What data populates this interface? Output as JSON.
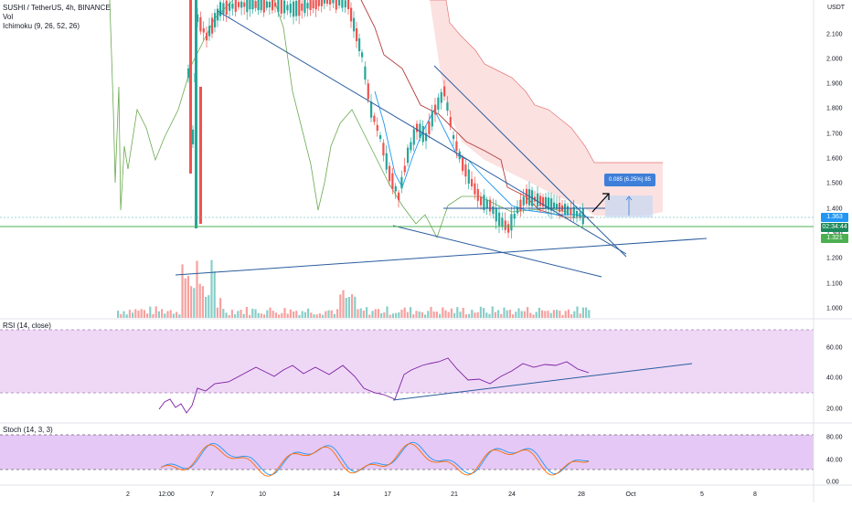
{
  "chart": {
    "symbol_line": "SUSHI / TetherUS, 4h, BINANCE",
    "indicators": [
      "Vol",
      "Ichimoku (9, 26, 52, 26)"
    ],
    "currency": "USDT",
    "price_ticks": [
      "2.100",
      "2.000",
      "1.900",
      "1.800",
      "1.700",
      "1.600",
      "1.500",
      "1.400",
      "1.300",
      "1.200",
      "1.100",
      "1.000"
    ],
    "current_price": "1.363",
    "countdown": "02:34:44",
    "level_price": "1.321",
    "measure_label": "0.085 (6.25%) 85",
    "time_ticks": [
      "2",
      "12:00",
      "7",
      "10",
      "14",
      "17",
      "21",
      "24",
      "28",
      "Oct",
      "5",
      "8"
    ]
  },
  "rsi": {
    "title": "RSI (14, close)",
    "ticks": [
      "60.00",
      "40.00",
      "20.00"
    ]
  },
  "stoch": {
    "title": "Stoch (14, 3, 3)",
    "ticks": [
      "80.00",
      "40.00",
      "0.00"
    ]
  },
  "colors": {
    "up": "#26a69a",
    "down": "#ef5350",
    "cloud_fill": "#fbdcdc",
    "trendline": "#2a5c9e",
    "support": "#4caf50",
    "current_price_bg": "#2196f3",
    "countdown_bg": "#1b8a5a",
    "level_bg": "#4caf50",
    "rsi_line": "#7b1fa2",
    "rsi_band": "#efd8f6",
    "stoch_k": "#2196f3",
    "stoch_d": "#ff6d00",
    "stoch_band": "#e5c8f5"
  }
}
